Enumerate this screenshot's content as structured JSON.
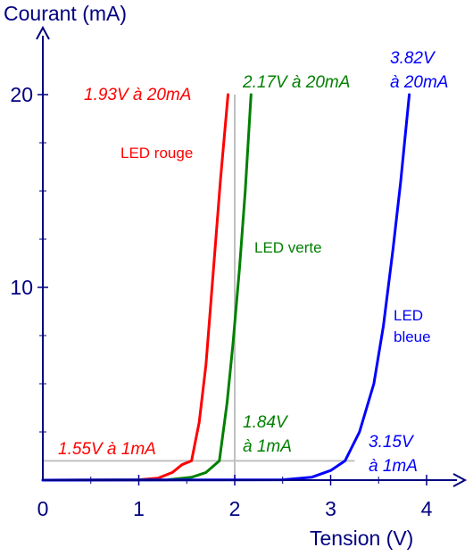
{
  "chart_data": {
    "type": "line",
    "ylabel": "Courant (mA)",
    "xlabel": "Tension (V)",
    "xlim": [
      0,
      4.3
    ],
    "ylim": [
      0,
      22
    ],
    "x_ticks": [
      0,
      1,
      2,
      3,
      4
    ],
    "y_ticks": [
      10,
      20
    ],
    "x_minor_step": 0.5,
    "y_minor_step": 2.5,
    "colors": {
      "axis": "#000080",
      "guide": "#c0c0c0"
    },
    "guides": {
      "vertical_x": 2,
      "horizontal_y": 1
    },
    "series": [
      {
        "name": "LED rouge",
        "color": "#ff0000",
        "points": [
          [
            0,
            0
          ],
          [
            1.0,
            0.02
          ],
          [
            1.2,
            0.1
          ],
          [
            1.35,
            0.4
          ],
          [
            1.45,
            0.8
          ],
          [
            1.55,
            1.0
          ],
          [
            1.63,
            3
          ],
          [
            1.7,
            6
          ],
          [
            1.78,
            11
          ],
          [
            1.85,
            15.5
          ],
          [
            1.93,
            20
          ]
        ]
      },
      {
        "name": "LED verte",
        "color": "#008000",
        "points": [
          [
            0,
            0
          ],
          [
            1.3,
            0.02
          ],
          [
            1.55,
            0.15
          ],
          [
            1.7,
            0.4
          ],
          [
            1.84,
            1.0
          ],
          [
            1.92,
            4
          ],
          [
            1.98,
            7
          ],
          [
            2.05,
            11
          ],
          [
            2.11,
            15
          ],
          [
            2.17,
            20
          ]
        ]
      },
      {
        "name": "LED bleue",
        "color": "#0000ff",
        "points": [
          [
            0,
            0
          ],
          [
            2.5,
            0.02
          ],
          [
            2.8,
            0.15
          ],
          [
            3.0,
            0.5
          ],
          [
            3.15,
            1.0
          ],
          [
            3.3,
            2.5
          ],
          [
            3.45,
            5
          ],
          [
            3.55,
            8
          ],
          [
            3.65,
            12
          ],
          [
            3.73,
            15.5
          ],
          [
            3.82,
            20
          ]
        ]
      }
    ],
    "annotations": {
      "red_top": "1.93V à 20mA",
      "green_top": "2.17V à 20mA",
      "blue_top_1": "3.82V",
      "blue_top_2": "à 20mA",
      "red_bottom": "1.55V à 1mA",
      "green_bottom_1": "1.84V",
      "green_bottom_2": "à 1mA",
      "blue_bottom_1": "3.15V",
      "blue_bottom_2": "à 1mA",
      "label_red": "LED rouge",
      "label_green": "LED verte",
      "label_blue_1": "LED",
      "label_blue_2": "bleue"
    }
  }
}
